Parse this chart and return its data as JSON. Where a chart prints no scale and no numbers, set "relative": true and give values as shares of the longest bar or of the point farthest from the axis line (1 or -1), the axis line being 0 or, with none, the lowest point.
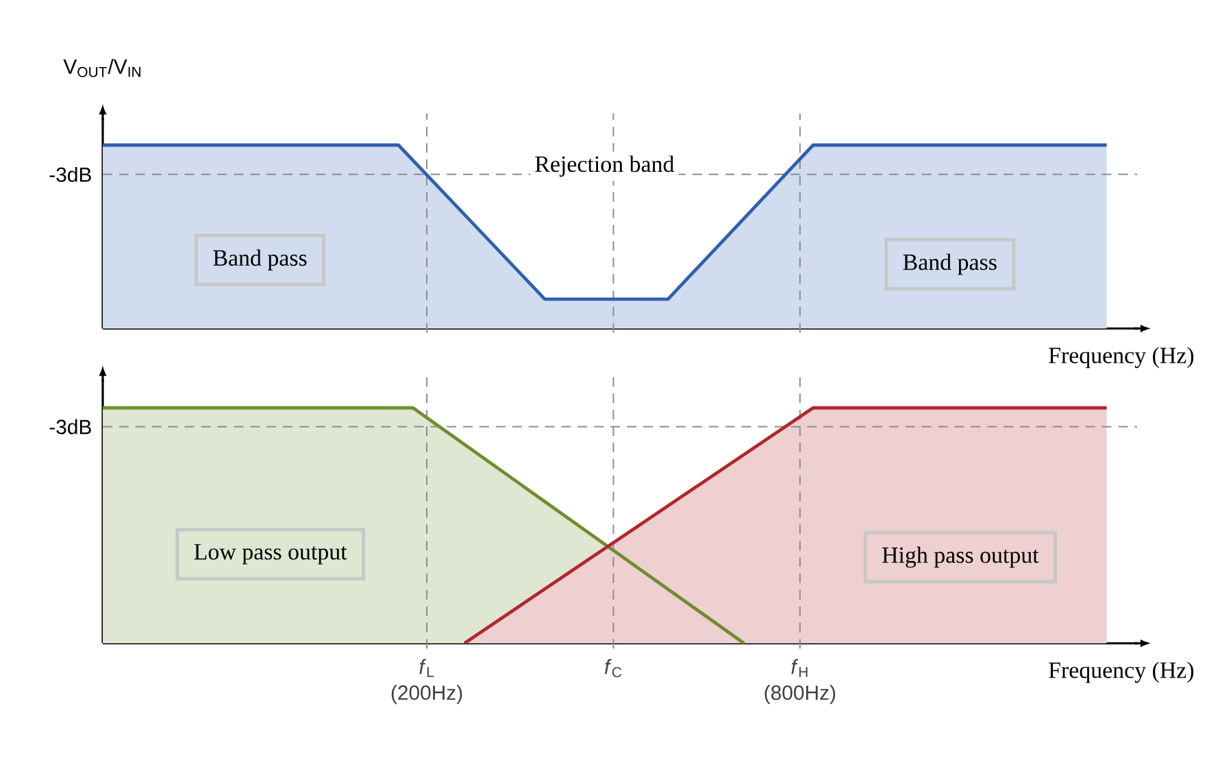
{
  "chart_data": [
    {
      "type": "area",
      "relative": true,
      "ylabel": "V$_{OUT}$/V$_{IN}$",
      "xlabel": "Frequency (Hz)",
      "log": "x",
      "xlim": [
        60,
        2800
      ],
      "tick_labels": false,
      "series": [
        {
          "color": "#2e5fb0",
          "x": [
            60,
            180,
            310,
            490,
            840,
            2500
          ],
          "values": [
            1,
            1,
            0.16,
            0.16,
            1,
            1
          ]
        }
      ],
      "ref_lines": [
        {
          "axis": "y",
          "value": 0.84,
          "label": "-3dB",
          "line_style": "dashed",
          "color": "#8c8c8c"
        },
        {
          "axis": "x",
          "value": 200,
          "line_style": "dashed",
          "color": "#8c8c8c"
        },
        {
          "axis": "x",
          "value": 400,
          "line_style": "dashed",
          "color": "#8c8c8c"
        },
        {
          "axis": "x",
          "value": 800,
          "line_style": "dashed",
          "color": "#8c8c8c"
        }
      ],
      "annotations": [
        "Rejection band",
        "Band pass",
        "Band pass"
      ]
    },
    {
      "type": "area",
      "relative": true,
      "xlabel": "Frequency (Hz)",
      "log": "x",
      "xlim": [
        60,
        2800
      ],
      "tick_labels": "x",
      "xticks": [
        {
          "value": 200,
          "label": "*f*$_{L}$ (200Hz)"
        },
        {
          "value": 400,
          "label": "*f*$_{C}$"
        },
        {
          "value": 800,
          "label": "*f*$_{H}$ (800Hz)"
        }
      ],
      "series": [
        {
          "color": "#6f8e2e",
          "x": [
            60,
            190,
            650
          ],
          "values": [
            1,
            1,
            0
          ]
        },
        {
          "color": "#b0282c",
          "x": [
            230,
            840,
            2500
          ],
          "values": [
            0,
            1,
            1
          ]
        }
      ],
      "ref_lines": [
        {
          "axis": "y",
          "value": 0.92,
          "label": "-3dB",
          "line_style": "dashed",
          "color": "#8c8c8c"
        },
        {
          "axis": "x",
          "value": 200,
          "line_style": "dashed",
          "color": "#8c8c8c"
        },
        {
          "axis": "x",
          "value": 400,
          "line_style": "dashed",
          "color": "#8c8c8c"
        },
        {
          "axis": "x",
          "value": 800,
          "line_style": "dashed",
          "color": "#8c8c8c"
        }
      ],
      "annotations": [
        "Low pass output",
        "High pass output"
      ]
    }
  ]
}
